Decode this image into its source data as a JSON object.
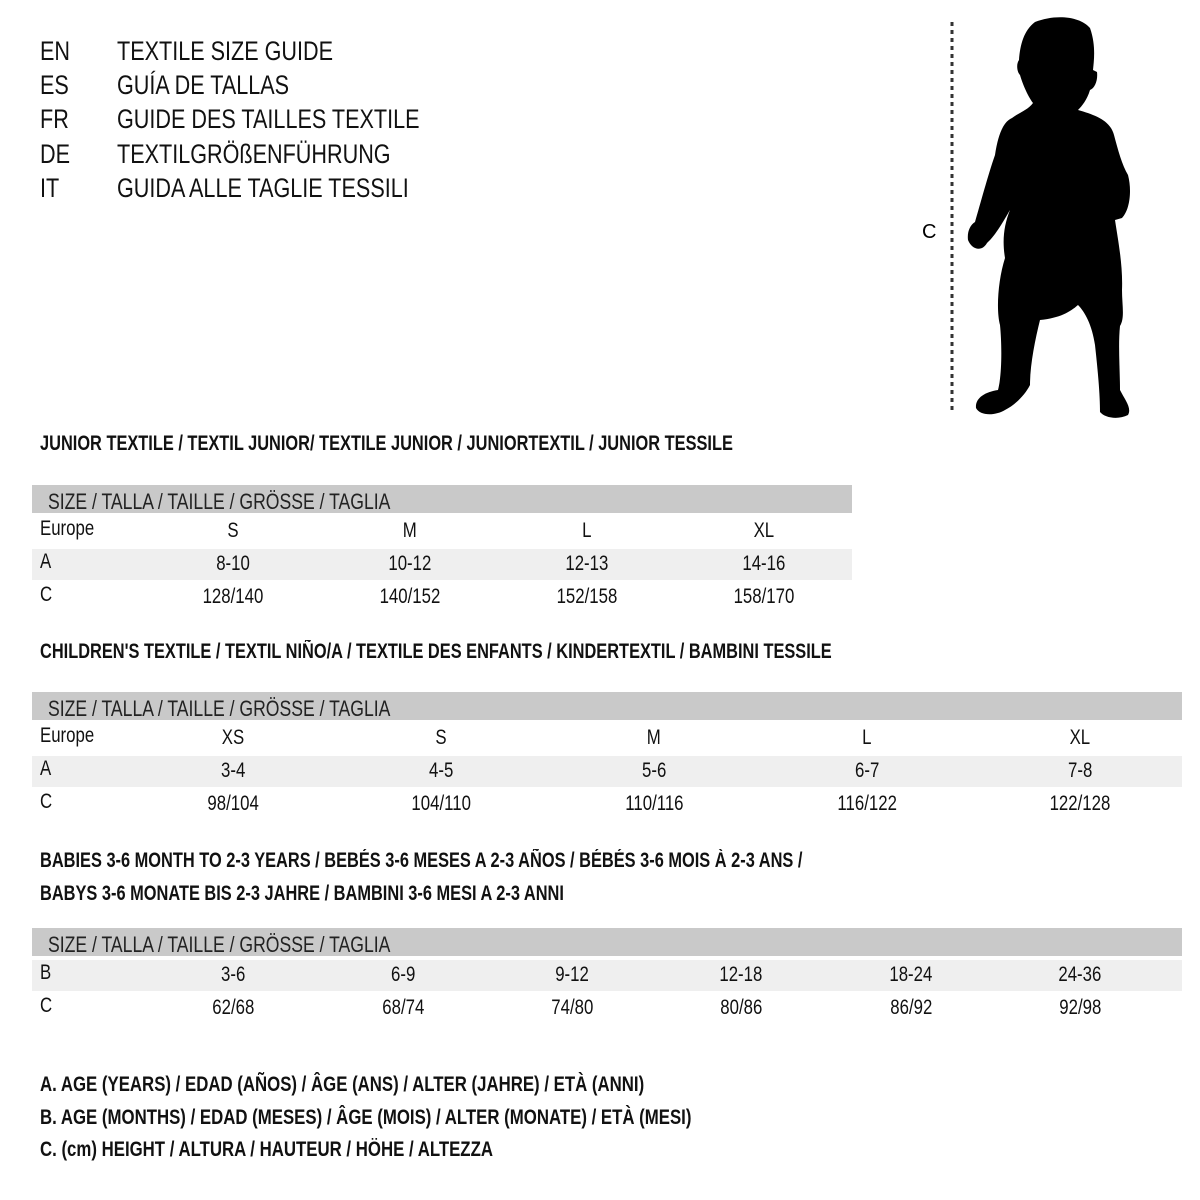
{
  "languages": [
    {
      "code": "EN",
      "text": "TEXTILE SIZE GUIDE"
    },
    {
      "code": "ES",
      "text": "GUÍA DE TALLAS"
    },
    {
      "code": "FR",
      "text": "GUIDE DES TAILLES TEXTILE"
    },
    {
      "code": "DE",
      "text": "TEXTILGRÖßENFÜHRUNG"
    },
    {
      "code": "IT",
      "text": "GUIDA ALLE TAGLIE TESSILI"
    }
  ],
  "figure": {
    "icon": "child-silhouette-icon",
    "measure_label": "C"
  },
  "junior": {
    "title": "JUNIOR TEXTILE / TEXTIL JUNIOR/ TEXTILE JUNIOR / JUNIORTEXTIL / JUNIOR TESSILE",
    "header": "SIZE / TALLA / TAILLE / GRÖSSE / TAGLIA",
    "rows": [
      {
        "label": "Europe",
        "values": [
          "S",
          "M",
          "L",
          "XL"
        ]
      },
      {
        "label": "A",
        "values": [
          "8-10",
          "10-12",
          "12-13",
          "14-16"
        ]
      },
      {
        "label": "C",
        "values": [
          "128/140",
          "140/152",
          "152/158",
          "158/170"
        ]
      }
    ]
  },
  "children": {
    "title": "CHILDREN'S TEXTILE / TEXTIL NIÑO/A / TEXTILE DES ENFANTS / KINDERTEXTIL / BAMBINI TESSILE",
    "header": "SIZE / TALLA / TAILLE / GRÖSSE / TAGLIA",
    "rows": [
      {
        "label": "Europe",
        "values": [
          "XS",
          "S",
          "M",
          "L",
          "XL"
        ]
      },
      {
        "label": "A",
        "values": [
          "3-4",
          "4-5",
          "5-6",
          "6-7",
          "7-8"
        ]
      },
      {
        "label": "C",
        "values": [
          "98/104",
          "104/110",
          "110/116",
          "116/122",
          "122/128"
        ]
      }
    ]
  },
  "babies": {
    "title_line1": "BABIES 3-6 MONTH TO 2-3 YEARS / BEBÉS 3-6 MESES A 2-3 AÑOS / BÉBÉS 3-6 MOIS À 2-3 ANS /",
    "title_line2": "BABYS 3-6 MONATE BIS 2-3 JAHRE / BAMBINI 3-6 MESI A 2-3 ANNI",
    "header": "SIZE / TALLA / TAILLE / GRÖSSE / TAGLIA",
    "rows": [
      {
        "label": "B",
        "values": [
          "3-6",
          "6-9",
          "9-12",
          "12-18",
          "18-24",
          "24-36"
        ]
      },
      {
        "label": "C",
        "values": [
          "62/68",
          "68/74",
          "74/80",
          "80/86",
          "86/92",
          "92/98"
        ]
      }
    ]
  },
  "legend": [
    "A. AGE (YEARS) / EDAD (AÑOS) / ÂGE (ANS) / ALTER (JAHRE) / ETÀ (ANNI)",
    "B. AGE (MONTHS) / EDAD (MESES) / ÂGE (MOIS) / ALTER (MONATE) / ETÀ (MESI)",
    "C. (cm) HEIGHT / ALTURA / HAUTEUR / HÖHE / ALTEZZA"
  ],
  "colors": {
    "header_bg": "#c9c9c9",
    "alt_row_bg": "#efefef"
  }
}
